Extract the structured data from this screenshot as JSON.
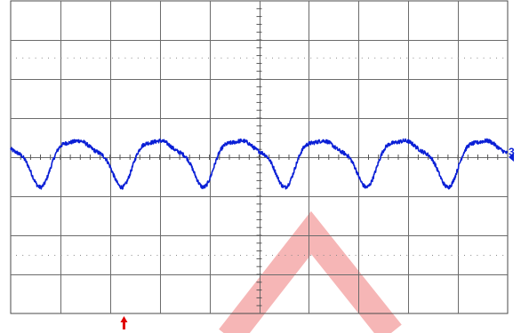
{
  "chart_data": {
    "type": "line",
    "title": "",
    "xlabel": "",
    "ylabel": "",
    "grid": true,
    "divisions": {
      "x": 10,
      "y": 8
    },
    "xlim": [
      0,
      10
    ],
    "ylim": [
      -4,
      4
    ],
    "series": [
      {
        "name": "",
        "marker_label": "3",
        "color": "#0a1fd6",
        "waveform": {
          "period_div": 1.64,
          "offset_div": 0.0,
          "components": [
            {
              "harmonic": 1,
              "amplitude_div": 0.52,
              "phase": 0.0
            },
            {
              "harmonic": 2,
              "amplitude_div": 0.18,
              "phase": 1.1
            },
            {
              "harmonic": 3,
              "amplitude_div": 0.08,
              "phase": 2.4
            }
          ],
          "noise_div": 0.05,
          "start_phase": 2.6
        }
      }
    ],
    "trigger": {
      "x_div": 2.28,
      "color": "#e00000"
    },
    "watermark": {
      "color": "#f4a9a9"
    }
  }
}
